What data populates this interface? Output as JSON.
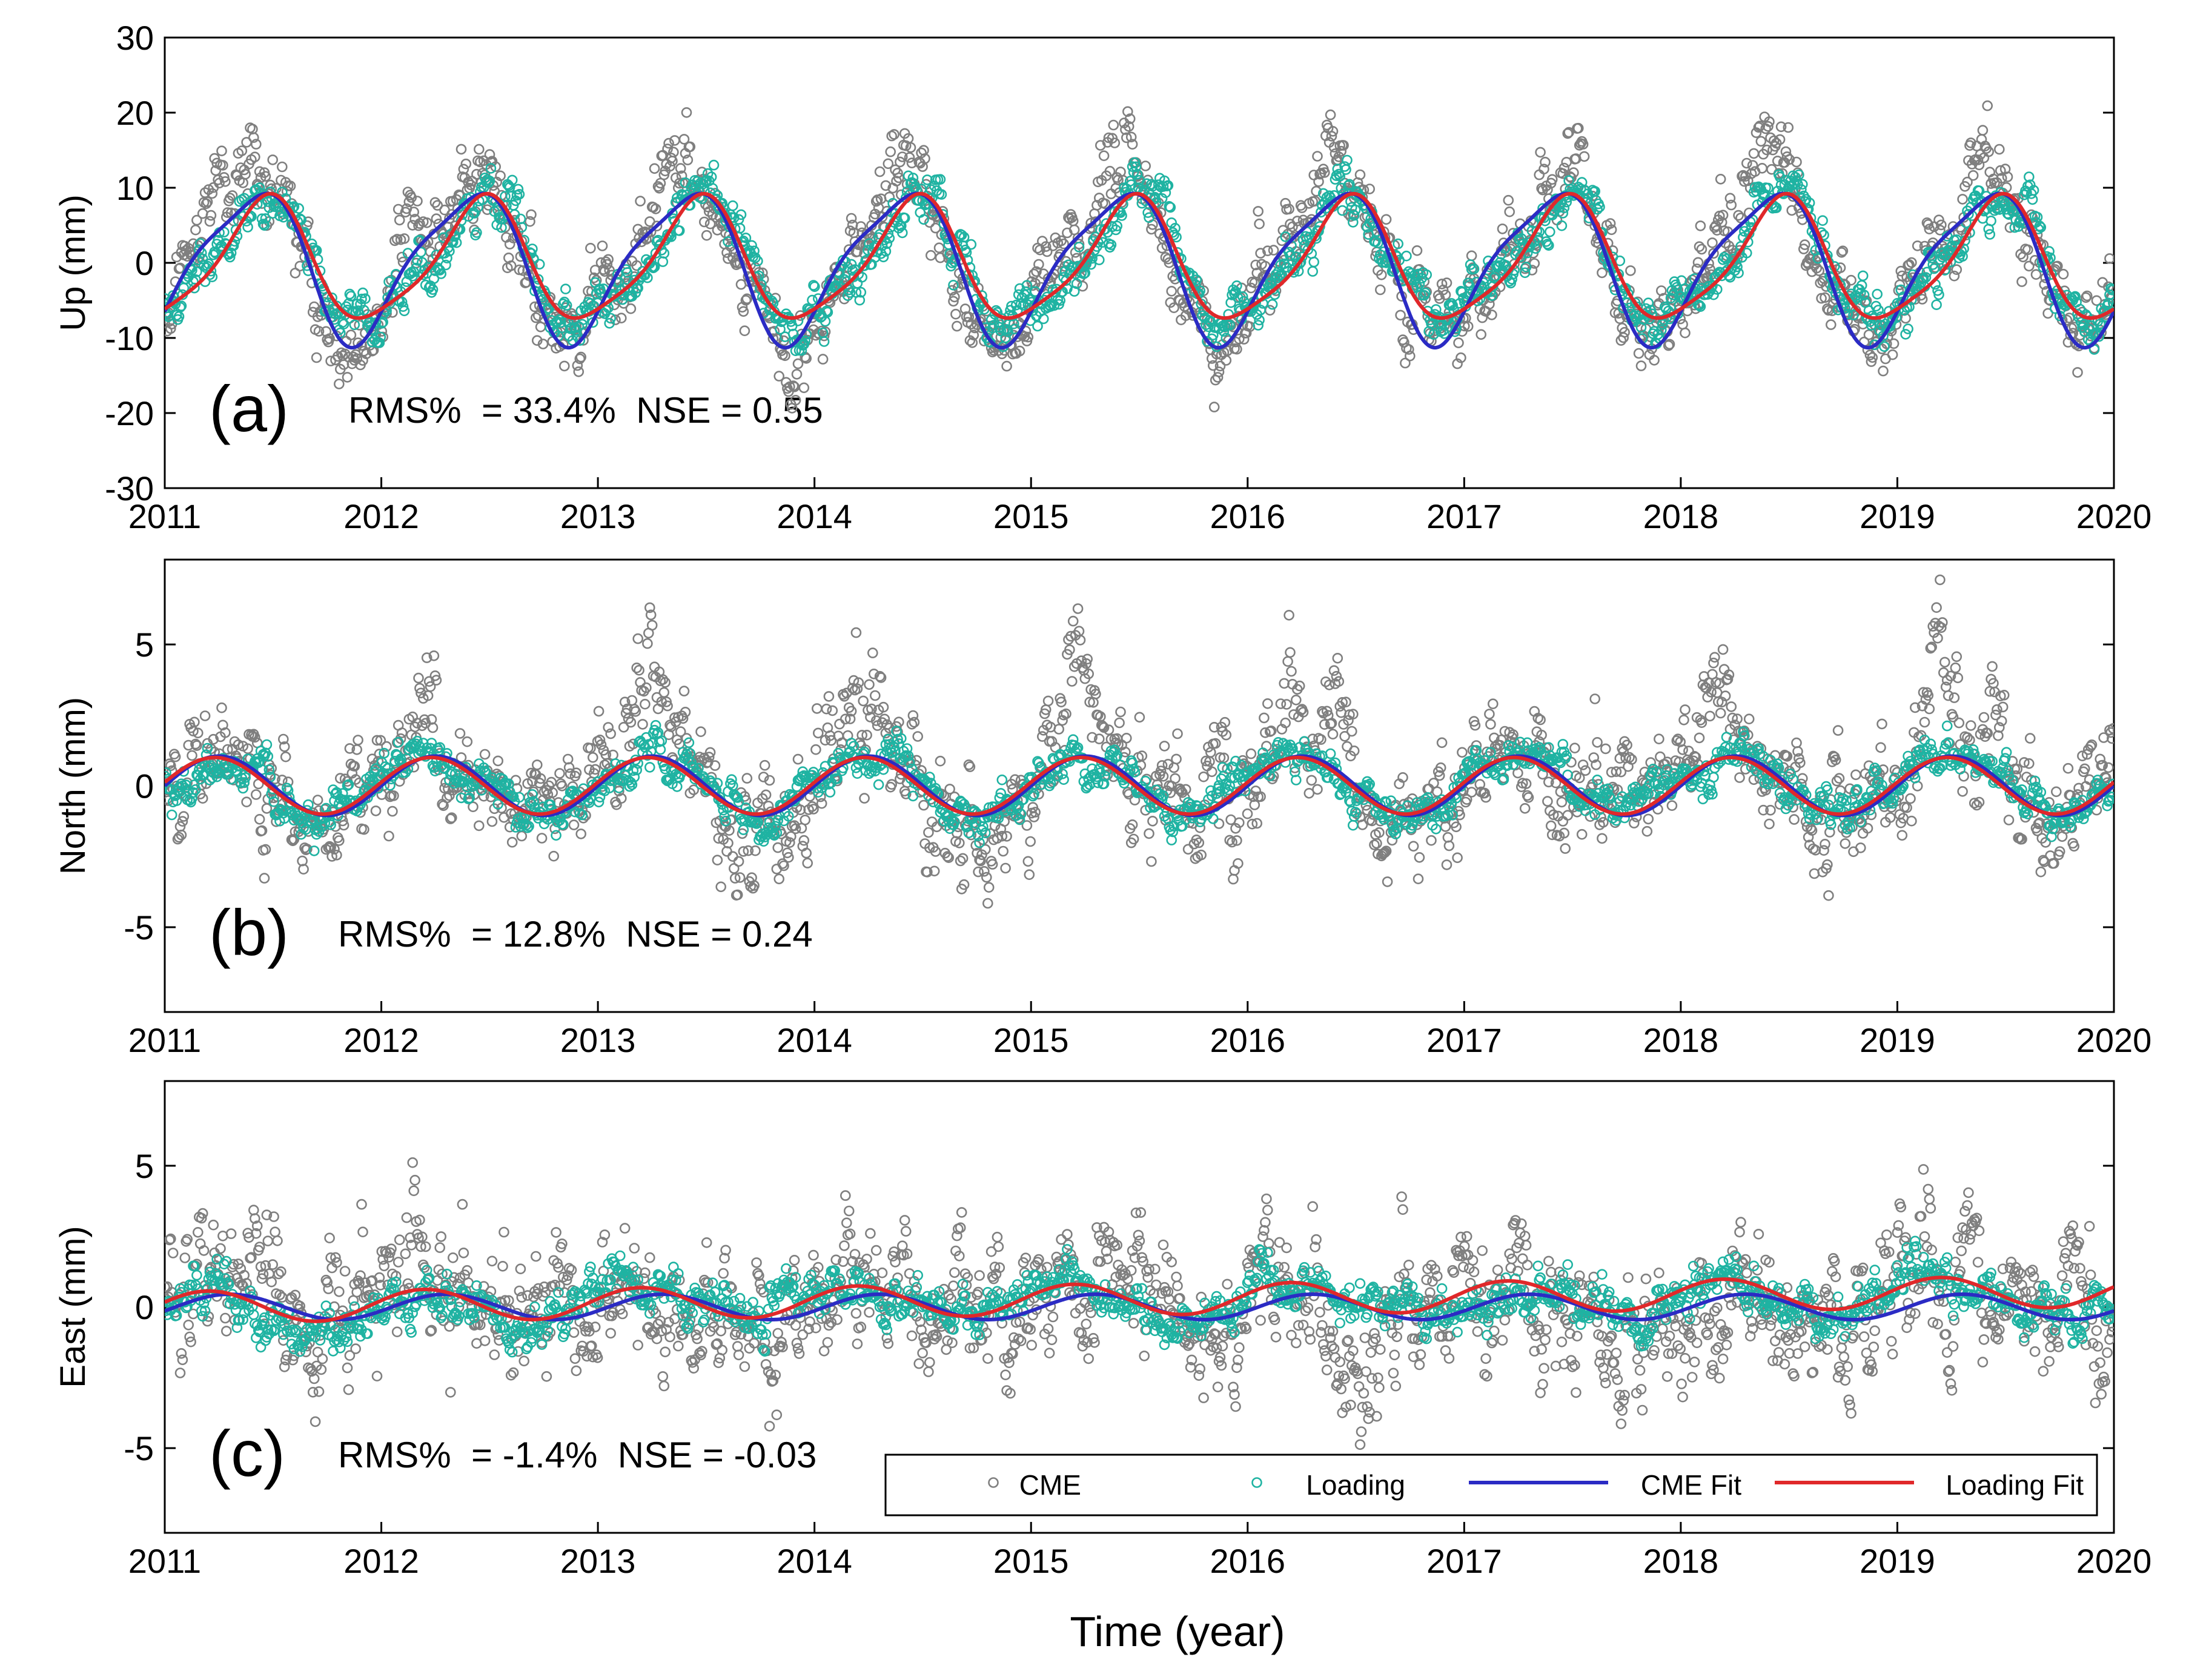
{
  "figure": {
    "xlabel": "Time (year)"
  },
  "legend": {
    "placement": "bottom-right of panel (c)",
    "items": [
      {
        "key": "cme",
        "label": "CME"
      },
      {
        "key": "loading",
        "label": "Loading"
      },
      {
        "key": "cme_fit",
        "label": "CME Fit"
      },
      {
        "key": "loading_fit",
        "label": "Loading Fit"
      }
    ]
  },
  "colors": {
    "cme": "#7f7f7f",
    "loading": "#1fb3a2",
    "cme_fit": "#2b2bc4",
    "loading_fit": "#e0282a"
  },
  "chart_data": [
    {
      "type": "scatter",
      "panel": "(a)",
      "component": "up",
      "ylabel": "Up (mm)",
      "annotation": "RMS%  = 33.4%  NSE = 0.55",
      "xlim": [
        2011,
        2020
      ],
      "ylim": [
        -30,
        30
      ],
      "xticks": [
        2011,
        2012,
        2013,
        2014,
        2015,
        2016,
        2017,
        2018,
        2019,
        2020
      ],
      "yticks": [
        -30,
        -20,
        -10,
        0,
        10,
        20,
        30
      ],
      "sample_interval_days": 2,
      "series": [
        {
          "name": "CME",
          "style": "open-circles",
          "model": {
            "amp1": 9.6,
            "phase1": 0.15,
            "amp2": 2.2,
            "phase2": 0.45,
            "trend": 0.0,
            "noise_sd": 3.6,
            "burst": 6.5,
            "burst_phase": 0.37
          }
        },
        {
          "name": "Loading",
          "style": "open-circles",
          "model": {
            "amp1": 8.1,
            "phase1": 0.2,
            "amp2": 1.6,
            "phase2": 0.4,
            "trend": 0.0,
            "noise_sd": 2.1
          }
        },
        {
          "name": "CME Fit",
          "style": "line",
          "model": {
            "amp1": 9.6,
            "phase1": 0.15,
            "amp2": 2.2,
            "phase2": 0.45,
            "trend": 0.0
          }
        },
        {
          "name": "Loading Fit",
          "style": "line",
          "model": {
            "amp1": 7.9,
            "phase1": 0.21,
            "amp2": 1.6,
            "phase2": 0.4,
            "trend": 0.0
          }
        }
      ]
    },
    {
      "type": "scatter",
      "panel": "(b)",
      "component": "north",
      "ylabel": "North (mm)",
      "annotation": "RMS%  = 12.8%  NSE = 0.24",
      "xlim": [
        2011,
        2020
      ],
      "ylim": [
        -8,
        8
      ],
      "xticks": [
        2011,
        2012,
        2013,
        2014,
        2015,
        2016,
        2017,
        2018,
        2019,
        2020
      ],
      "yticks": [
        -5,
        0,
        5
      ],
      "sample_interval_days": 2,
      "series": [
        {
          "name": "CME",
          "style": "open-circles",
          "model": {
            "amp1": 1.05,
            "phase1": 0.0,
            "amp2": 0.0,
            "phase2": 0.0,
            "trend": 0.0,
            "noise_sd": 1.3,
            "burst": 2.2,
            "burst_phase": 0.2
          }
        },
        {
          "name": "Loading",
          "style": "open-circles",
          "model": {
            "amp1": 1.0,
            "phase1": 0.0,
            "amp2": 0.0,
            "phase2": 0.0,
            "trend": 0.0,
            "noise_sd": 0.45
          }
        },
        {
          "name": "CME Fit",
          "style": "line",
          "model": {
            "amp1": 1.05,
            "phase1": 0.0,
            "amp2": 0.0,
            "phase2": 0.0,
            "trend": 0.0
          }
        },
        {
          "name": "Loading Fit",
          "style": "line",
          "model": {
            "amp1": 1.0,
            "phase1": -0.02,
            "amp2": 0.0,
            "phase2": 0.0,
            "trend": 0.0
          }
        }
      ]
    },
    {
      "type": "scatter",
      "panel": "(c)",
      "component": "east",
      "ylabel": "East (mm)",
      "annotation": "RMS%  = -1.4%  NSE = -0.03",
      "xlim": [
        2011,
        2020
      ],
      "ylim": [
        -8,
        8
      ],
      "xticks": [
        2011,
        2012,
        2013,
        2014,
        2015,
        2016,
        2017,
        2018,
        2019,
        2020
      ],
      "yticks": [
        -5,
        0,
        5
      ],
      "sample_interval_days": 2,
      "series": [
        {
          "name": "CME",
          "style": "open-circles",
          "model": {
            "amp1": 0.45,
            "phase1": 0.05,
            "amp2": 0.0,
            "phase2": 0.0,
            "trend": 0.0,
            "noise_sd": 1.5,
            "burst": 1.5,
            "burst_phase": 0.12
          }
        },
        {
          "name": "Loading",
          "style": "open-circles",
          "model": {
            "amp1": 0.6,
            "phase1": -0.05,
            "amp2": 0.0,
            "phase2": 0.0,
            "trend": 0.04,
            "noise_sd": 0.5
          }
        },
        {
          "name": "CME Fit",
          "style": "line",
          "model": {
            "amp1": 0.45,
            "phase1": 0.05,
            "amp2": 0.0,
            "phase2": 0.0,
            "trend": 0.0
          }
        },
        {
          "name": "Loading Fit",
          "style": "line",
          "model": {
            "amp1": 0.55,
            "phase1": -0.05,
            "amp2": 0.0,
            "phase2": 0.0,
            "trend": 0.06
          }
        }
      ]
    }
  ]
}
